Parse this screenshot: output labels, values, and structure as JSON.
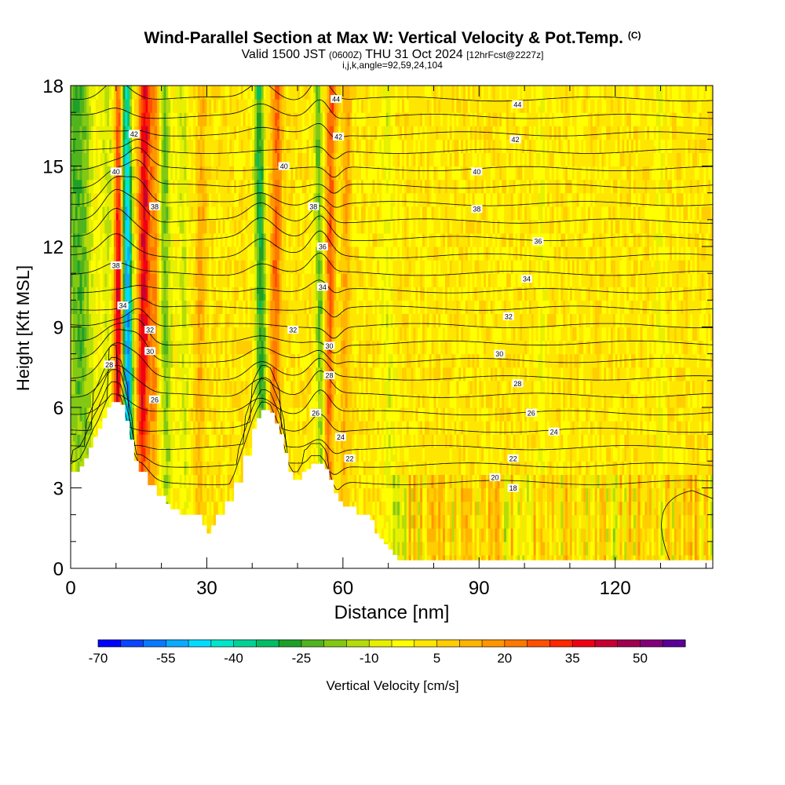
{
  "header": {
    "title": "Wind-Parallel Section at Max W: Vertical Velocity & Pot.Temp.",
    "title_tag": "(C)",
    "sub_valid": "Valid 1500 JST",
    "sub_utc": "(0600Z)",
    "sub_date": "THU 31 Oct 2024",
    "sub_fcst": "[12hrFcst@2227z]",
    "sub_params": "i,j,k,angle=92,59,24,104"
  },
  "chart_data": {
    "type": "heatmap",
    "title": "Wind-Parallel Section at Max W: Vertical Velocity & Pot.Temp.",
    "xlabel": "Distance [nm]",
    "ylabel": "Height [Kft MSL]",
    "xlim": [
      0,
      141.5
    ],
    "ylim": [
      0,
      18
    ],
    "x_ticks": [
      0,
      30,
      60,
      90,
      120
    ],
    "y_ticks": [
      0,
      3,
      6,
      9,
      12,
      15,
      18
    ],
    "grid": false,
    "colorbar": {
      "label": "Vertical Velocity [cm/s]",
      "tick_labels": [
        "-70",
        "-55",
        "-40",
        "-25",
        "-10",
        "5",
        "20",
        "35",
        "50"
      ],
      "bounds": [
        -70,
        60
      ],
      "step": 5,
      "colors": [
        "#0000ff",
        "#0a46ff",
        "#0a78ff",
        "#0aaaff",
        "#00dcff",
        "#00e6c8",
        "#00d296",
        "#00be64",
        "#1ea028",
        "#50b41e",
        "#82c814",
        "#b4dc0a",
        "#e6f000",
        "#ffff00",
        "#ffe600",
        "#ffcd00",
        "#ffb400",
        "#ff9600",
        "#ff7800",
        "#ff5000",
        "#ff2800",
        "#f00014",
        "#c80032",
        "#a00050",
        "#820078",
        "#5a0096"
      ]
    },
    "terrain": {
      "distance_nm": [
        0,
        2,
        3,
        4,
        5,
        6,
        7,
        8,
        9,
        10,
        11,
        12,
        13,
        14,
        15,
        17,
        19,
        21,
        22,
        24,
        26,
        28,
        29,
        30,
        31,
        32,
        34,
        36,
        38,
        40,
        41,
        42,
        43,
        44,
        45,
        46,
        47,
        48,
        49,
        50,
        51,
        52,
        53,
        55,
        56,
        57,
        58,
        59,
        60,
        61,
        62,
        63,
        64,
        66,
        67,
        68,
        69,
        70,
        71,
        72,
        73,
        75,
        141.5
      ],
      "height_kft": [
        3.6,
        3.8,
        4.1,
        4.5,
        4.9,
        5.2,
        5.6,
        6.0,
        6.2,
        6.2,
        6.1,
        5.5,
        4.8,
        4.0,
        3.6,
        3.1,
        2.7,
        2.4,
        2.2,
        2.0,
        2.0,
        2.0,
        1.6,
        1.3,
        1.6,
        2.0,
        2.5,
        3.2,
        4.2,
        5.2,
        5.6,
        5.9,
        5.9,
        5.8,
        5.4,
        5.0,
        4.3,
        3.6,
        3.3,
        3.3,
        3.6,
        3.7,
        3.9,
        3.9,
        3.7,
        3.3,
        2.8,
        2.5,
        2.3,
        2.3,
        2.3,
        2.0,
        2.0,
        1.8,
        1.3,
        1.1,
        0.9,
        0.7,
        0.5,
        0.3,
        0.3,
        0.3,
        0.3
      ]
    },
    "vertical_velocity_features": [
      {
        "center_nm": 2,
        "width_nm": 3,
        "w_cms": -25
      },
      {
        "center_nm": 8.5,
        "width_nm": 1.5,
        "w_cms": -12
      },
      {
        "center_nm": 10.5,
        "width_nm": 1.2,
        "w_cms": 45
      },
      {
        "center_nm": 12.5,
        "width_nm": 1.2,
        "w_cms": -62
      },
      {
        "center_nm": 16,
        "width_nm": 1.4,
        "w_cms": 38
      },
      {
        "center_nm": 18.5,
        "width_nm": 1,
        "w_cms": 18
      },
      {
        "center_nm": 21,
        "width_nm": 1.3,
        "w_cms": -22
      },
      {
        "center_nm": 25,
        "width_nm": 1.3,
        "w_cms": -12
      },
      {
        "center_nm": 28.5,
        "width_nm": 1,
        "w_cms": 12
      },
      {
        "center_nm": 42,
        "width_nm": 1.2,
        "w_cms": -30
      },
      {
        "center_nm": 45,
        "width_nm": 1.2,
        "w_cms": 22
      },
      {
        "center_nm": 55,
        "width_nm": 1,
        "w_cms": -22
      },
      {
        "center_nm": 57,
        "width_nm": 1,
        "w_cms": 25
      },
      {
        "center_nm": 60.5,
        "width_nm": 1,
        "w_cms": 12
      },
      {
        "center_nm": 70,
        "width_nm": 1.5,
        "w_cms": -10
      },
      {
        "center_nm": 104,
        "width_nm": 1,
        "w_cms": -8
      },
      {
        "center_nm": 130,
        "width_nm": 1.2,
        "w_cms": -8
      }
    ],
    "potential_temperature_contours": {
      "labeled_values": [
        "44",
        "42",
        "40",
        "38",
        "36",
        "34",
        "32",
        "30",
        "28",
        "26",
        "24",
        "22",
        "20",
        "18"
      ],
      "labels": [
        {
          "text": "44",
          "x": 58.5,
          "y": 17.5
        },
        {
          "text": "44",
          "x": 98.5,
          "y": 17.3
        },
        {
          "text": "42",
          "x": 14,
          "y": 16.2
        },
        {
          "text": "42",
          "x": 59,
          "y": 16.1
        },
        {
          "text": "42",
          "x": 98,
          "y": 16.0
        },
        {
          "text": "40",
          "x": 10,
          "y": 14.8
        },
        {
          "text": "40",
          "x": 47,
          "y": 15.0
        },
        {
          "text": "40",
          "x": 89.5,
          "y": 14.8
        },
        {
          "text": "38",
          "x": 18.5,
          "y": 13.5
        },
        {
          "text": "38",
          "x": 53.5,
          "y": 13.5
        },
        {
          "text": "38",
          "x": 89.5,
          "y": 13.4
        },
        {
          "text": "36",
          "x": 55.5,
          "y": 12.0
        },
        {
          "text": "36",
          "x": 103,
          "y": 12.2
        },
        {
          "text": "38",
          "x": 10,
          "y": 11.3
        },
        {
          "text": "34",
          "x": 55.5,
          "y": 10.5
        },
        {
          "text": "34",
          "x": 100.5,
          "y": 10.8
        },
        {
          "text": "34",
          "x": 11.5,
          "y": 9.8
        },
        {
          "text": "32",
          "x": 17.5,
          "y": 8.9
        },
        {
          "text": "32",
          "x": 49,
          "y": 8.9
        },
        {
          "text": "32",
          "x": 96.5,
          "y": 9.4
        },
        {
          "text": "30",
          "x": 17.5,
          "y": 8.1
        },
        {
          "text": "30",
          "x": 57,
          "y": 8.3
        },
        {
          "text": "30",
          "x": 94.5,
          "y": 8.0
        },
        {
          "text": "28",
          "x": 8.5,
          "y": 7.6
        },
        {
          "text": "28",
          "x": 57,
          "y": 7.2
        },
        {
          "text": "28",
          "x": 98.5,
          "y": 6.9
        },
        {
          "text": "26",
          "x": 18.5,
          "y": 6.3
        },
        {
          "text": "26",
          "x": 54,
          "y": 5.8
        },
        {
          "text": "26",
          "x": 101.5,
          "y": 5.8
        },
        {
          "text": "24",
          "x": 59.5,
          "y": 4.9
        },
        {
          "text": "24",
          "x": 106.5,
          "y": 5.1
        },
        {
          "text": "22",
          "x": 61.5,
          "y": 4.1
        },
        {
          "text": "22",
          "x": 97.5,
          "y": 4.1
        },
        {
          "text": "20",
          "x": 93.5,
          "y": 3.4
        },
        {
          "text": "18",
          "x": 97.5,
          "y": 3.0
        }
      ]
    }
  }
}
